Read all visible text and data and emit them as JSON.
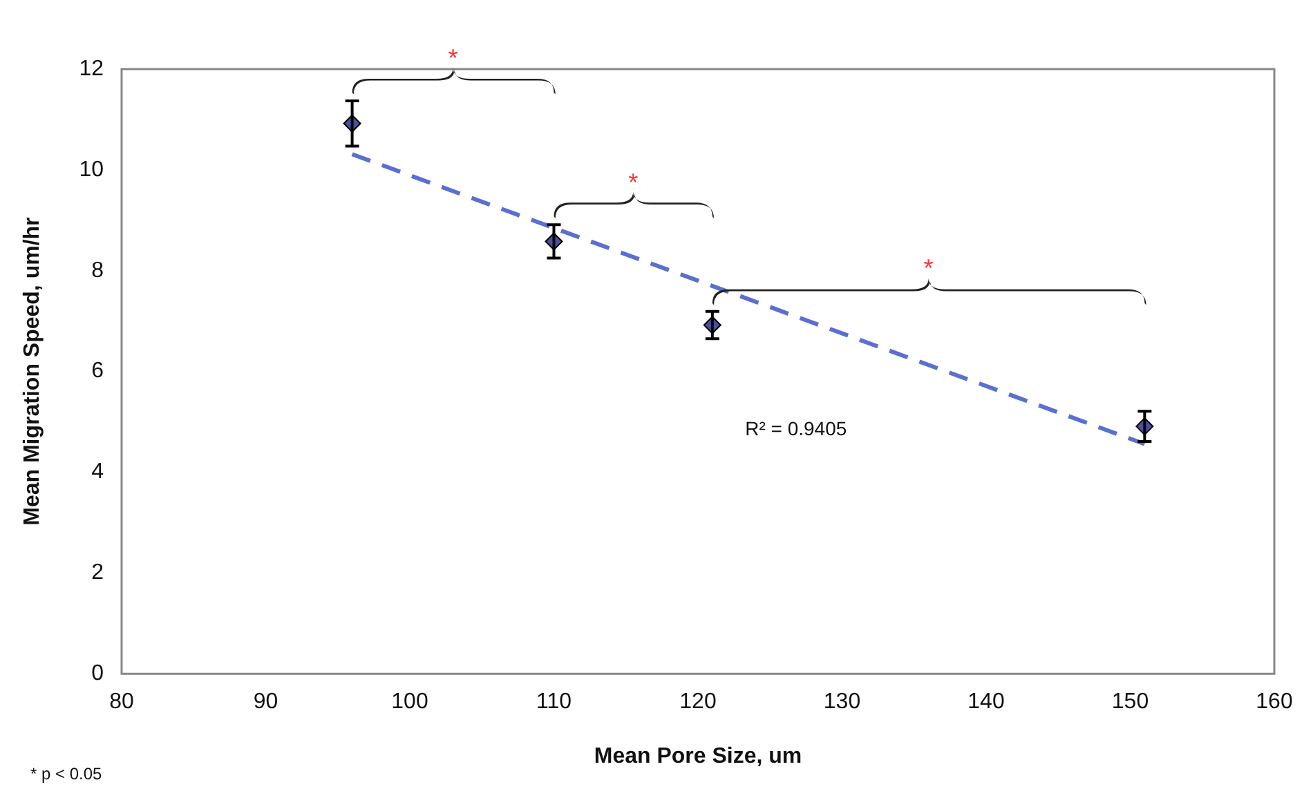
{
  "chart_data": {
    "type": "scatter",
    "xlabel": "Mean Pore Size, um",
    "ylabel": "Mean Migration Speed, um/hr",
    "xlim": [
      80,
      160
    ],
    "xticks": [
      80,
      90,
      100,
      110,
      120,
      130,
      140,
      150,
      160
    ],
    "ylim": [
      0,
      12
    ],
    "yticks": [
      0,
      2,
      4,
      6,
      8,
      10,
      12
    ],
    "grid": false,
    "legend": false,
    "marker": "diamond",
    "series": [
      {
        "type": "scatter",
        "color": "#4b4f9c",
        "x": [
          96,
          110,
          121,
          151
        ],
        "values": [
          10.92,
          8.58,
          6.92,
          4.91
        ],
        "errors": [
          0.45,
          0.33,
          0.27,
          0.3
        ]
      },
      {
        "type": "line",
        "color": "#5b6fd0",
        "line_style": "dashed",
        "marker": "none",
        "x": [
          96,
          151
        ],
        "values": [
          10.31,
          4.56
        ]
      }
    ],
    "annotations": [
      "*",
      "*",
      "*",
      "R² = 0.9405",
      "* p < 0.05"
    ]
  }
}
